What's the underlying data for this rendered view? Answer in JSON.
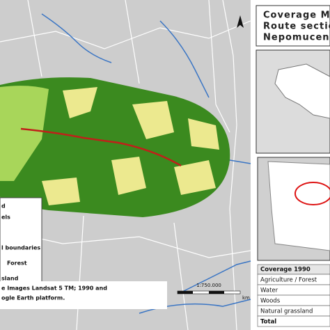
{
  "title_lines": [
    "Coverage M",
    "Route sectio",
    "Nepomucen"
  ],
  "legend": {
    "title": "d",
    "items": [
      "els",
      "l boundaries",
      "Forest",
      "sland"
    ]
  },
  "source": [
    "e Images Landsat 5 TM; 1990 and",
    "ogle Earth platform."
  ],
  "scale": {
    "ratio": "1:750.000",
    "unit": "km"
  },
  "table": {
    "header": "Coverage 1990",
    "rows": [
      "Agriculture / Forest",
      "Water",
      "Woods",
      "Natural grassland",
      "Total"
    ]
  }
}
